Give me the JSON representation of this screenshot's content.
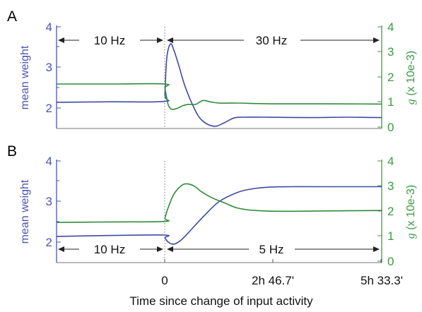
{
  "chart_data": [
    {
      "panel": "A",
      "type": "line",
      "xlabel": "",
      "ylabel_left": "mean weight",
      "ylabel_right": "g (x 10e-3)",
      "left_ylim": [
        1.75,
        4
      ],
      "left_ticks": [
        2,
        3,
        4
      ],
      "right_ylim": [
        0,
        4
      ],
      "right_ticks": [
        0,
        1,
        2,
        3,
        4
      ],
      "xlim": [
        -0.6,
        1.2
      ],
      "annotations": [
        "10 Hz",
        "30 Hz"
      ],
      "series": [
        {
          "axis": "left",
          "color": "#3f4aa3",
          "x": [
            -0.6,
            -0.3,
            -0.002,
            0,
            0.01,
            0.03,
            0.05,
            0.08,
            0.11,
            0.15,
            0.2,
            0.27,
            0.33,
            0.38,
            0.43,
            0.55,
            0.8,
            1.0,
            1.2
          ],
          "y": [
            2.33,
            2.34,
            2.35,
            2.5,
            3.3,
            3.62,
            3.48,
            3.1,
            2.7,
            2.3,
            1.95,
            1.8,
            1.88,
            1.98,
            2.0,
            2.0,
            1.99,
            2.0,
            1.99
          ]
        },
        {
          "axis": "right",
          "color": "#2e8b3a",
          "x": [
            -0.6,
            -0.3,
            -0.002,
            0,
            0.01,
            0.02,
            0.04,
            0.07,
            0.1,
            0.13,
            0.17,
            0.21,
            0.25,
            0.3,
            0.4,
            0.6,
            0.9,
            1.2
          ],
          "y": [
            1.75,
            1.75,
            1.75,
            1.6,
            1.2,
            0.9,
            0.75,
            0.8,
            0.9,
            0.95,
            0.95,
            1.1,
            1.05,
            1.0,
            1.0,
            0.97,
            0.97,
            0.96
          ]
        }
      ]
    },
    {
      "panel": "B",
      "type": "line",
      "xlabel": "Time since change of input activity",
      "ylabel_left": "mean weight",
      "ylabel_right": "g (x 10e-3)",
      "left_ylim": [
        1.75,
        4
      ],
      "left_ticks": [
        2,
        3,
        4
      ],
      "right_ylim": [
        0,
        4
      ],
      "right_ticks": [
        0,
        1,
        2,
        3,
        4
      ],
      "xlim": [
        -0.6,
        1.2
      ],
      "x_ticks": [
        {
          "value": 0,
          "label": "0"
        },
        {
          "value": 0.6,
          "label": "2h 46.7'"
        },
        {
          "value": 1.2,
          "label": "5h 33.3'"
        }
      ],
      "annotations": [
        "10 Hz",
        "5 Hz"
      ],
      "series": [
        {
          "axis": "left",
          "color": "#3f4aa3",
          "x": [
            -0.6,
            -0.3,
            -0.001,
            0,
            0.02,
            0.05,
            0.09,
            0.15,
            0.22,
            0.3,
            0.4,
            0.48,
            0.58,
            0.7,
            0.9,
            1.2
          ],
          "y": [
            2.33,
            2.35,
            2.36,
            2.3,
            2.2,
            2.16,
            2.25,
            2.5,
            2.8,
            3.1,
            3.3,
            3.38,
            3.42,
            3.43,
            3.43,
            3.43
          ]
        },
        {
          "axis": "right",
          "color": "#2e8b3a",
          "x": [
            -0.6,
            -0.3,
            -0.001,
            0,
            0.02,
            0.05,
            0.09,
            0.12,
            0.16,
            0.2,
            0.26,
            0.33,
            0.4,
            0.5,
            0.65,
            0.85,
            1.2
          ],
          "y": [
            1.58,
            1.6,
            1.62,
            1.75,
            2.2,
            2.7,
            3.02,
            3.1,
            3.02,
            2.8,
            2.55,
            2.35,
            2.15,
            2.05,
            2.02,
            2.03,
            2.05
          ]
        }
      ]
    }
  ],
  "panels": {
    "a": {
      "letter": "A",
      "ylabel_left": "mean weight",
      "ylabel_right_g": "g",
      "ylabel_right_rest": " (x 10e-3)",
      "annot_left": "10 Hz",
      "annot_right": "30 Hz",
      "left_ticks": [
        "2",
        "3",
        "4"
      ],
      "right_ticks": [
        "0",
        "1",
        "2",
        "3",
        "4"
      ]
    },
    "b": {
      "letter": "B",
      "ylabel_left": "mean weight",
      "ylabel_right_g": "g",
      "ylabel_right_rest": " (x 10e-3)",
      "annot_left": "10 Hz",
      "annot_right": "5 Hz",
      "left_ticks": [
        "2",
        "3",
        "4"
      ],
      "right_ticks": [
        "0",
        "1",
        "2",
        "3",
        "4"
      ]
    }
  },
  "x_tick_labels": [
    "0",
    "2h 46.7'",
    "5h 33.3'"
  ],
  "xlabel": "Time since change of input activity",
  "colors": {
    "weight": "#3f4aa3",
    "g": "#2e8b3a",
    "axis_blue": "#4a55b5",
    "axis_green": "#3c9a43",
    "annot": "#222222"
  }
}
